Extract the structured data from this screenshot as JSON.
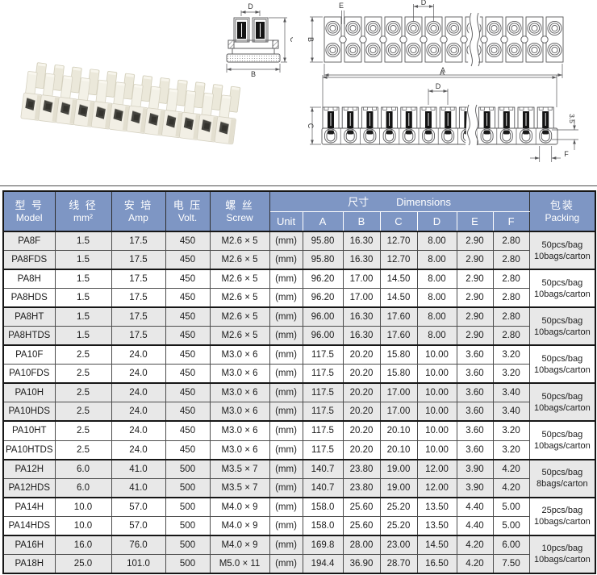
{
  "colors": {
    "header_blue": "#7e96c4",
    "row_gray": "#e8e8e8",
    "row_white": "#ffffff",
    "line_dark": "#161616",
    "line_mid": "#4d4d4d",
    "draw_line": "#58585a",
    "ivory": "#f2efe5"
  },
  "drawings": {
    "cross_section": {
      "dim_d": "D",
      "dim_c": "C",
      "dim_b": "B"
    },
    "top_view": {
      "dim_e": "E",
      "dim_d": "D",
      "dim_b": "B",
      "dim_a": "A"
    },
    "side_view": {
      "dim_a": "A",
      "dim_d": "D",
      "dim_c": "C",
      "dim_35": "3.5",
      "dim_f": "F"
    }
  },
  "table": {
    "header": {
      "col1_cn": "型 号",
      "col1_en": "Model",
      "col2_cn": "线 径",
      "col2_en": "mm²",
      "col3_cn": "安 培",
      "col3_en": "Amp",
      "col4_cn": "电 压",
      "col4_en": "Volt.",
      "col5_cn": "螺 丝",
      "col5_en": "Screw",
      "dims_cn": "尺寸",
      "dims_en": "Dimensions",
      "sub_cols": [
        "Unit",
        "A",
        "B",
        "C",
        "D",
        "E",
        "F"
      ],
      "pack_cn": "包装",
      "pack_en": "Packing"
    },
    "rows": [
      [
        "PA8F",
        "1.5",
        "17.5",
        "450",
        "M2.6 × 5",
        "(mm)",
        "95.80",
        "16.30",
        "12.70",
        "8.00",
        "2.90",
        "2.80"
      ],
      [
        "PA8FDS",
        "1.5",
        "17.5",
        "450",
        "M2.6 × 5",
        "(mm)",
        "95.80",
        "16.30",
        "12.70",
        "8.00",
        "2.90",
        "2.80"
      ],
      [
        "PA8H",
        "1.5",
        "17.5",
        "450",
        "M2.6 × 5",
        "(mm)",
        "96.20",
        "17.00",
        "14.50",
        "8.00",
        "2.90",
        "2.80"
      ],
      [
        "PA8HDS",
        "1.5",
        "17.5",
        "450",
        "M2.6 × 5",
        "(mm)",
        "96.20",
        "17.00",
        "14.50",
        "8.00",
        "2.90",
        "2.80"
      ],
      [
        "PA8HT",
        "1.5",
        "17.5",
        "450",
        "M2.6 × 5",
        "(mm)",
        "96.00",
        "16.30",
        "17.60",
        "8.00",
        "2.90",
        "2.80"
      ],
      [
        "PA8HTDS",
        "1.5",
        "17.5",
        "450",
        "M2.6 × 5",
        "(mm)",
        "96.00",
        "16.30",
        "17.60",
        "8.00",
        "2.90",
        "2.80"
      ],
      [
        "PA10F",
        "2.5",
        "24.0",
        "450",
        "M3.0 × 6",
        "(mm)",
        "117.5",
        "20.20",
        "15.80",
        "10.00",
        "3.60",
        "3.20"
      ],
      [
        "PA10FDS",
        "2.5",
        "24.0",
        "450",
        "M3.0 × 6",
        "(mm)",
        "117.5",
        "20.20",
        "15.80",
        "10.00",
        "3.60",
        "3.20"
      ],
      [
        "PA10H",
        "2.5",
        "24.0",
        "450",
        "M3.0 × 6",
        "(mm)",
        "117.5",
        "20.20",
        "17.00",
        "10.00",
        "3.60",
        "3.40"
      ],
      [
        "PA10HDS",
        "2.5",
        "24.0",
        "450",
        "M3.0 × 6",
        "(mm)",
        "117.5",
        "20.20",
        "17.00",
        "10.00",
        "3.60",
        "3.40"
      ],
      [
        "PA10HT",
        "2.5",
        "24.0",
        "450",
        "M3.0 × 6",
        "(mm)",
        "117.5",
        "20.20",
        "20.10",
        "10.00",
        "3.60",
        "3.20"
      ],
      [
        "PA10HTDS",
        "2.5",
        "24.0",
        "450",
        "M3.0 × 6",
        "(mm)",
        "117.5",
        "20.20",
        "20.10",
        "10.00",
        "3.60",
        "3.20"
      ],
      [
        "PA12H",
        "6.0",
        "41.0",
        "500",
        "M3.5 × 7",
        "(mm)",
        "140.7",
        "23.80",
        "19.00",
        "12.00",
        "3.90",
        "4.20"
      ],
      [
        "PA12HDS",
        "6.0",
        "41.0",
        "500",
        "M3.5 × 7",
        "(mm)",
        "140.7",
        "23.80",
        "19.00",
        "12.00",
        "3.90",
        "4.20"
      ],
      [
        "PA14H",
        "10.0",
        "57.0",
        "500",
        "M4.0 × 9",
        "(mm)",
        "158.0",
        "25.60",
        "25.20",
        "13.50",
        "4.40",
        "5.00"
      ],
      [
        "PA14HDS",
        "10.0",
        "57.0",
        "500",
        "M4.0 × 9",
        "(mm)",
        "158.0",
        "25.60",
        "25.20",
        "13.50",
        "4.40",
        "5.00"
      ],
      [
        "PA16H",
        "16.0",
        "76.0",
        "500",
        "M4.0 × 9",
        "(mm)",
        "169.8",
        "28.00",
        "23.00",
        "14.50",
        "4.20",
        "6.00"
      ],
      [
        "PA18H",
        "25.0",
        "101.0",
        "500",
        "M5.0 × 11",
        "(mm)",
        "194.4",
        "36.90",
        "28.70",
        "16.50",
        "4.20",
        "7.50"
      ]
    ],
    "packing_groups": [
      {
        "lines": [
          "50pcs/bag",
          "10bags/carton"
        ]
      },
      {
        "lines": [
          "50pcs/bag",
          "10bags/carton"
        ]
      },
      {
        "lines": [
          "50pcs/bag",
          "10bags/carton"
        ]
      },
      {
        "lines": [
          "50pcs/bag",
          "10bags/carton"
        ]
      },
      {
        "lines": [
          "50pcs/bag",
          "10bags/carton"
        ]
      },
      {
        "lines": [
          "50pcs/bag",
          "10bags/carton"
        ]
      },
      {
        "lines": [
          "50pcs/bag",
          "8bags/carton"
        ]
      },
      {
        "lines": [
          "25pcs/bag",
          "10bags/carton"
        ]
      },
      {
        "lines": [
          "10pcs/bag",
          "10bags/carton"
        ]
      }
    ]
  }
}
